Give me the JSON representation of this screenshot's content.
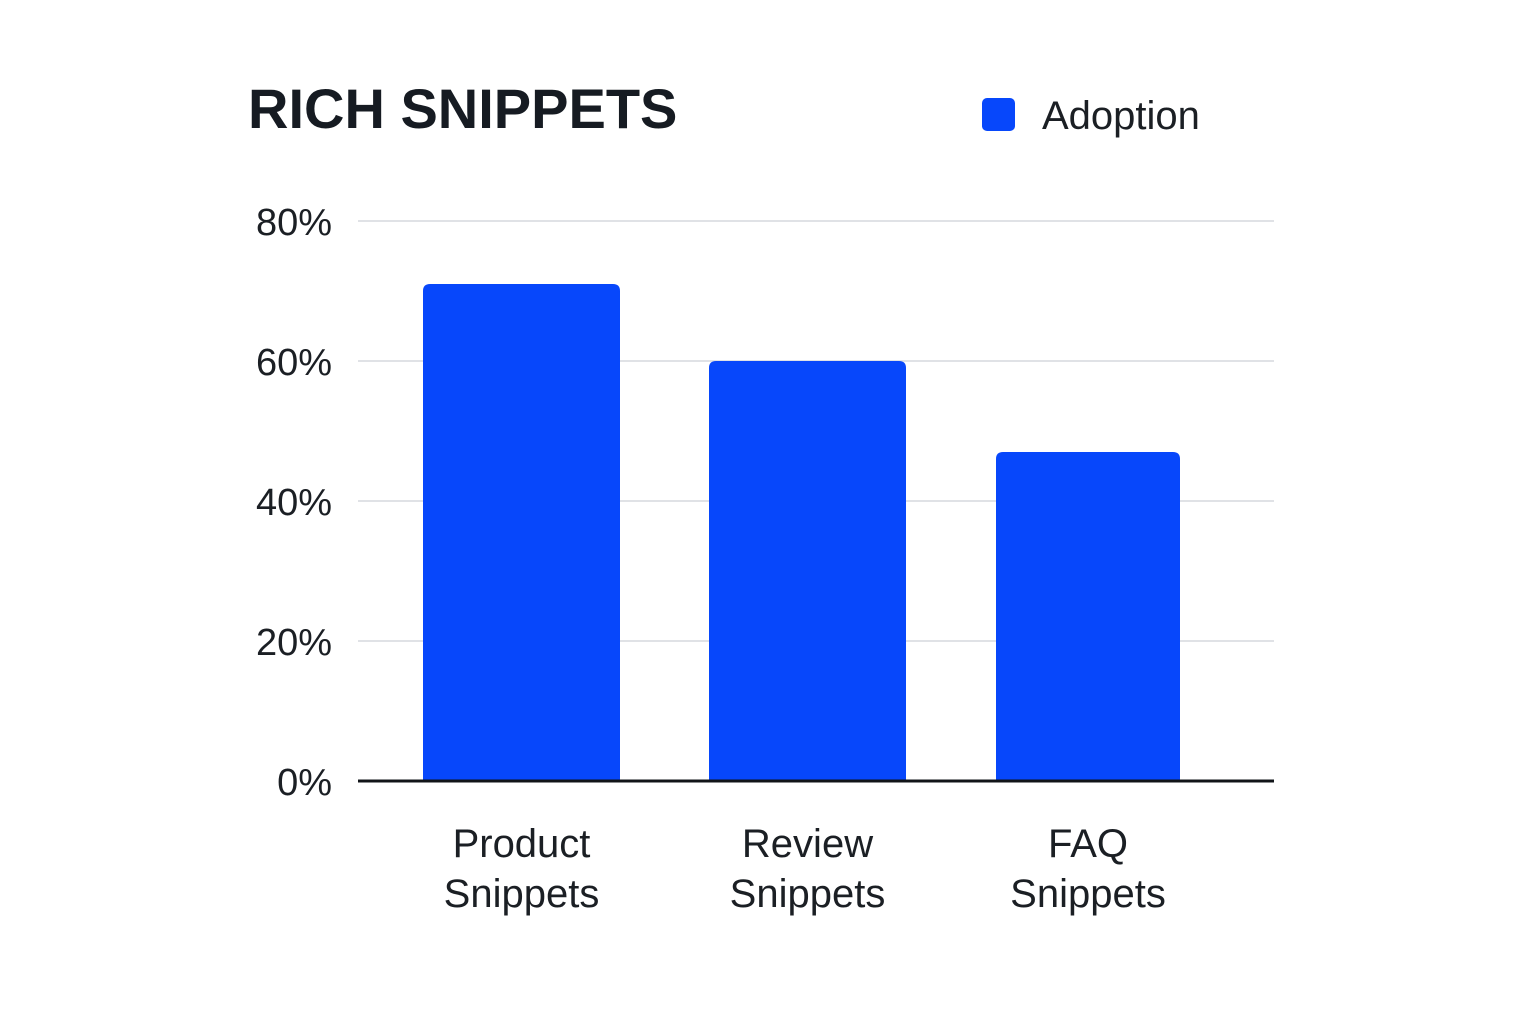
{
  "chart_data": {
    "type": "bar",
    "title": "RICH SNIPPETS",
    "categories": [
      [
        "Product",
        "Snippets"
      ],
      [
        "Review",
        "Snippets"
      ],
      [
        "FAQ",
        "Snippets"
      ]
    ],
    "series": [
      {
        "name": "Adoption",
        "values": [
          71,
          60,
          47
        ]
      }
    ],
    "ylim": [
      0,
      80
    ],
    "yticks": [
      0,
      20,
      40,
      60,
      80
    ],
    "ytick_labels": [
      "0%",
      "20%",
      "40%",
      "60%",
      "80%"
    ],
    "xlabel": "",
    "ylabel": "",
    "grid": true,
    "legend_position": "top-right",
    "colors": {
      "bar": "#0747fb",
      "grid": "#d6d9de",
      "axis": "#111418"
    }
  }
}
